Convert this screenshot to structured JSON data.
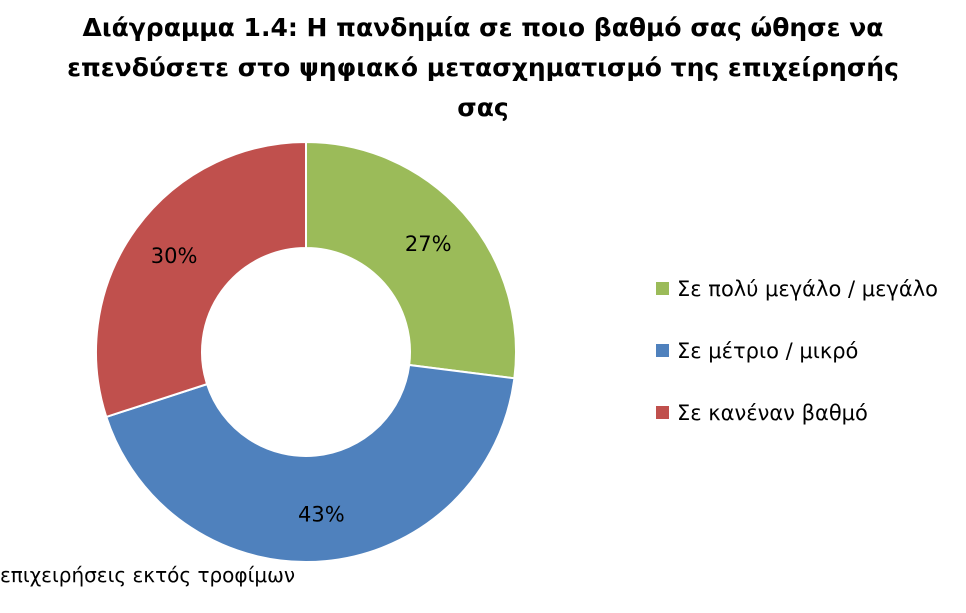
{
  "chart_data": {
    "type": "pie",
    "variant": "donut",
    "title_lines": [
      "Διάγραμμα 1.4: Η πανδημία σε ποιο βαθμό σας ώθησε να",
      "επενδύσετε στο ψηφιακό μετασχηματισμό της επιχείρησής",
      "σας"
    ],
    "categories": [
      "Σε πολύ μεγάλο / μεγάλο",
      "Σε μέτριο / μικρό",
      "Σε κανέναν βαθμό"
    ],
    "values": [
      27,
      43,
      30
    ],
    "data_labels": [
      "27%",
      "43%",
      "30%"
    ],
    "colors": [
      "#9BBB59",
      "#4F81BD",
      "#C0504D"
    ],
    "legend_position": "right",
    "start_angle": "12 o'clock, clockwise"
  },
  "footnote": "επιχειρήσεις εκτός τροφίμων"
}
